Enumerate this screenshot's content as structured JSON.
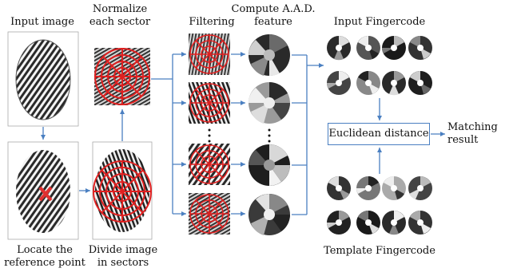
{
  "labels": {
    "input_image": "Input image",
    "normalize_line1": "Normalize",
    "normalize_line2": "each sector",
    "filtering": "Filtering",
    "compute_line1": "Compute A.A.D.",
    "compute_line2": "feature",
    "input_fingercode": "Input Fingercode",
    "euclidean_distance": "Euclidean distance",
    "matching_line1": "Matching",
    "matching_line2": "result",
    "template_fingercode": "Template Fingercode",
    "locate_line1": "Locate the",
    "locate_line2": "reference point",
    "divide_line1": "Divide image",
    "divide_line2": "in sectors"
  },
  "colors": {
    "arrow": "#4a7fc1",
    "overlay": "#e02020",
    "marker": "#e03030"
  }
}
